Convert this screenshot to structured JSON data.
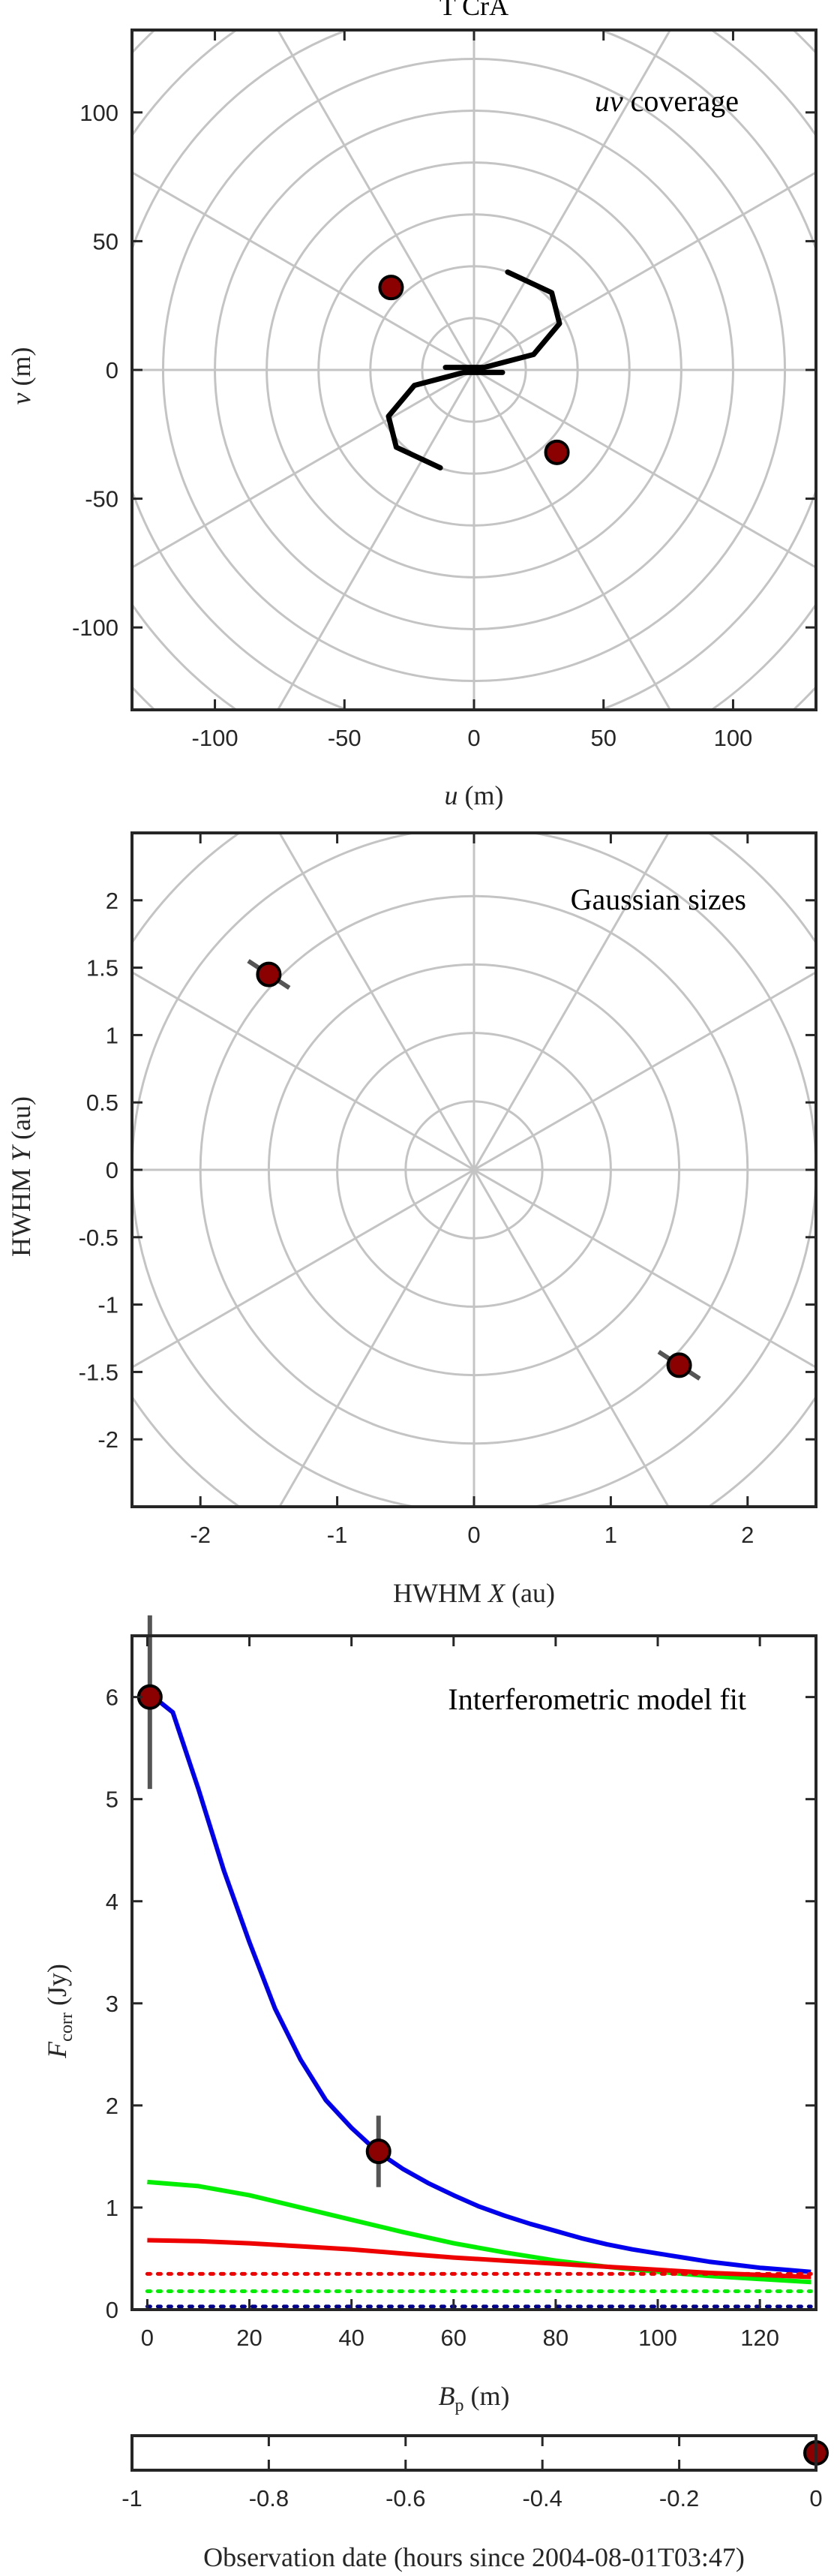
{
  "colors": {
    "grid": "#c4c4c4",
    "axis": "#262626",
    "marker_fill": "#8b0000",
    "marker_edge": "#000000",
    "errorbar": "#555555",
    "blue": "#0000ee",
    "green": "#00ee00",
    "red": "#ee0000",
    "navy": "#00008b",
    "track": "#000000"
  },
  "chart_data": [
    {
      "id": "uv",
      "type": "scatter",
      "title": "T CrA",
      "annotation": "uv coverage",
      "xlabel": "u (m)",
      "ylabel": "v (m)",
      "xlim": [
        -132,
        132
      ],
      "ylim": [
        -132,
        132
      ],
      "xticks": [
        -100,
        -50,
        0,
        50,
        100
      ],
      "yticks": [
        -100,
        -50,
        0,
        50,
        100
      ],
      "polar_grid": {
        "radii": [
          20,
          40,
          60,
          80,
          100,
          120,
          140,
          160,
          180
        ],
        "spoke_step_deg": 30
      },
      "tracks": [
        {
          "points": [
            [
              -13,
              -38
            ],
            [
              -30,
              -30
            ],
            [
              -33,
              -18
            ],
            [
              -23,
              -6
            ],
            [
              -4,
              -1
            ],
            [
              11,
              -1
            ]
          ]
        },
        {
          "points": [
            [
              13,
              38
            ],
            [
              30,
              30
            ],
            [
              33,
              18
            ],
            [
              23,
              6
            ],
            [
              4,
              1
            ],
            [
              -11,
              1
            ]
          ]
        }
      ],
      "points": [
        {
          "x": -32,
          "y": 32
        },
        {
          "x": 32,
          "y": -32
        }
      ],
      "grid": true
    },
    {
      "id": "sizes",
      "type": "scatter",
      "annotation": "Gaussian sizes",
      "xlabel": "HWHM X (au)",
      "ylabel": "HWHM Y (au)",
      "xlim": [
        -2.5,
        2.5
      ],
      "ylim": [
        -2.5,
        2.5
      ],
      "xticks": [
        -2,
        -1,
        0,
        1,
        2
      ],
      "yticks": [
        -2,
        -1.5,
        -1,
        -0.5,
        0,
        0.5,
        1,
        1.5,
        2
      ],
      "polar_grid": {
        "radii": [
          0.5,
          1.0,
          1.5,
          2.0,
          2.5,
          3.0,
          3.5
        ],
        "spoke_step_deg": 30
      },
      "points": [
        {
          "x": -1.5,
          "y": 1.45,
          "err_dx": 0.15,
          "err_dy": -0.1
        },
        {
          "x": 1.5,
          "y": -1.45,
          "err_dx": 0.15,
          "err_dy": -0.1
        }
      ],
      "grid": true
    },
    {
      "id": "fit",
      "type": "line",
      "annotation": "Interferometric model fit",
      "xlabel": "Bp (m)",
      "ylabel": "Fcorr (Jy)",
      "xlim": [
        -3,
        131
      ],
      "ylim": [
        0,
        6.6
      ],
      "xticks": [
        0,
        20,
        40,
        60,
        80,
        100,
        120
      ],
      "yticks": [
        0,
        1,
        2,
        3,
        4,
        5,
        6
      ],
      "series": [
        {
          "color": "blue",
          "style": "solid",
          "x": [
            0,
            5,
            10,
            15,
            20,
            25,
            30,
            35,
            40,
            45,
            50,
            55,
            60,
            65,
            70,
            75,
            80,
            85,
            90,
            95,
            100,
            105,
            110,
            115,
            120,
            125,
            130
          ],
          "y": [
            6.05,
            5.85,
            5.1,
            4.3,
            3.6,
            2.95,
            2.45,
            2.05,
            1.78,
            1.55,
            1.38,
            1.24,
            1.12,
            1.01,
            0.92,
            0.84,
            0.77,
            0.7,
            0.64,
            0.59,
            0.55,
            0.51,
            0.47,
            0.44,
            0.41,
            0.39,
            0.37
          ]
        },
        {
          "color": "green",
          "style": "solid",
          "x": [
            0,
            10,
            20,
            30,
            40,
            50,
            60,
            70,
            80,
            90,
            100,
            110,
            120,
            130
          ],
          "y": [
            1.25,
            1.21,
            1.12,
            1.0,
            0.88,
            0.76,
            0.65,
            0.56,
            0.48,
            0.42,
            0.37,
            0.33,
            0.3,
            0.27
          ]
        },
        {
          "color": "red",
          "style": "solid",
          "x": [
            0,
            10,
            20,
            30,
            40,
            50,
            60,
            70,
            80,
            90,
            100,
            110,
            120,
            130
          ],
          "y": [
            0.68,
            0.67,
            0.65,
            0.62,
            0.59,
            0.55,
            0.51,
            0.48,
            0.45,
            0.42,
            0.39,
            0.36,
            0.34,
            0.32
          ]
        },
        {
          "color": "red",
          "style": "dotted",
          "x": [
            0,
            130
          ],
          "y": [
            0.35,
            0.35
          ]
        },
        {
          "color": "green",
          "style": "dotted",
          "x": [
            0,
            130
          ],
          "y": [
            0.18,
            0.18
          ]
        },
        {
          "color": "navy",
          "style": "dotted",
          "x": [
            0,
            130
          ],
          "y": [
            0.03,
            0.03
          ]
        }
      ],
      "points": [
        {
          "x": 0.5,
          "y": 6.0,
          "err": 0.9
        },
        {
          "x": 45.3,
          "y": 1.55,
          "err": 0.35
        }
      ],
      "grid": false
    },
    {
      "id": "dates",
      "type": "scatter",
      "xlabel": "Observation date (hours since 2004-08-01T03:47)",
      "xlim": [
        -1,
        0
      ],
      "xticks": [
        -1,
        -0.8,
        -0.6,
        -0.4,
        -0.2,
        0
      ],
      "points": [
        {
          "x": 0
        }
      ]
    }
  ]
}
